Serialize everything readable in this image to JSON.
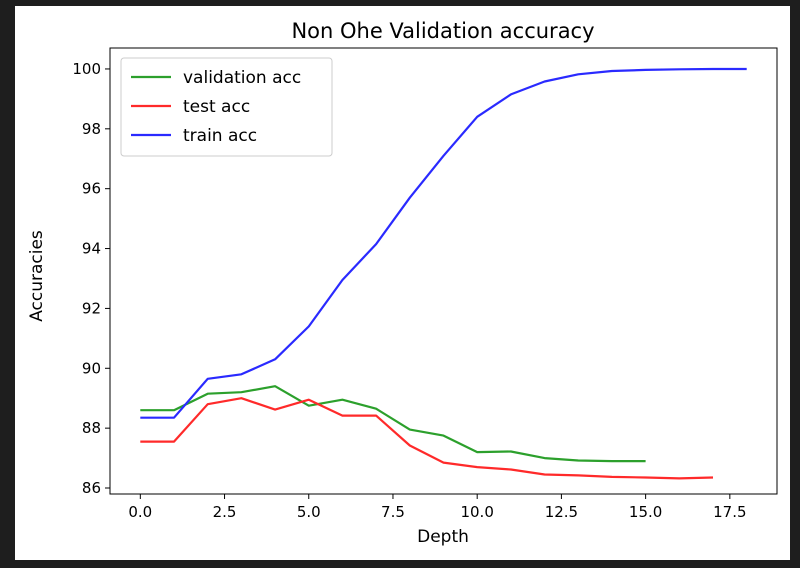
{
  "chart_data": {
    "type": "line",
    "title": "Non Ohe Validation accuracy",
    "xlabel": "Depth",
    "ylabel": "Accuracies",
    "xlim": [
      -0.9,
      18.9
    ],
    "ylim": [
      85.8,
      100.7
    ],
    "xticks": [
      0,
      2.5,
      5,
      7.5,
      10,
      12.5,
      15,
      17.5
    ],
    "xtick_labels": [
      "0.0",
      "2.5",
      "5.0",
      "7.5",
      "10.0",
      "12.5",
      "15.0",
      "17.5"
    ],
    "yticks": [
      86,
      88,
      90,
      92,
      94,
      96,
      98,
      100
    ],
    "ytick_labels": [
      "86",
      "88",
      "90",
      "92",
      "94",
      "96",
      "98",
      "100"
    ],
    "grid": false,
    "legend_position": "top-left",
    "series": [
      {
        "name": "validation acc",
        "color": "#2ca02c",
        "x": [
          0,
          1,
          2,
          3,
          4,
          5,
          6,
          7,
          8,
          9,
          10,
          11,
          12,
          13,
          14,
          15
        ],
        "y": [
          88.6,
          88.6,
          89.15,
          89.2,
          89.4,
          88.75,
          88.95,
          88.65,
          87.95,
          87.75,
          87.2,
          87.22,
          87.0,
          86.92,
          86.9,
          86.9
        ]
      },
      {
        "name": "test acc",
        "color": "#ff2a2a",
        "x": [
          0,
          1,
          2,
          3,
          4,
          5,
          6,
          7,
          8,
          9,
          10,
          11,
          12,
          13,
          14,
          15,
          16,
          17
        ],
        "y": [
          87.55,
          87.55,
          88.8,
          89.0,
          88.62,
          88.95,
          88.42,
          88.42,
          87.42,
          86.85,
          86.7,
          86.62,
          86.45,
          86.42,
          86.37,
          86.35,
          86.32,
          86.35
        ]
      },
      {
        "name": "train acc",
        "color": "#2a2aff",
        "x": [
          0,
          1,
          2,
          3,
          4,
          5,
          6,
          7,
          8,
          9,
          10,
          11,
          12,
          13,
          14,
          15,
          16,
          17,
          18
        ],
        "y": [
          88.35,
          88.35,
          89.65,
          89.8,
          90.3,
          91.4,
          92.95,
          94.15,
          95.7,
          97.1,
          98.4,
          99.15,
          99.58,
          99.82,
          99.93,
          99.97,
          99.99,
          100.0,
          100.0
        ]
      }
    ]
  }
}
